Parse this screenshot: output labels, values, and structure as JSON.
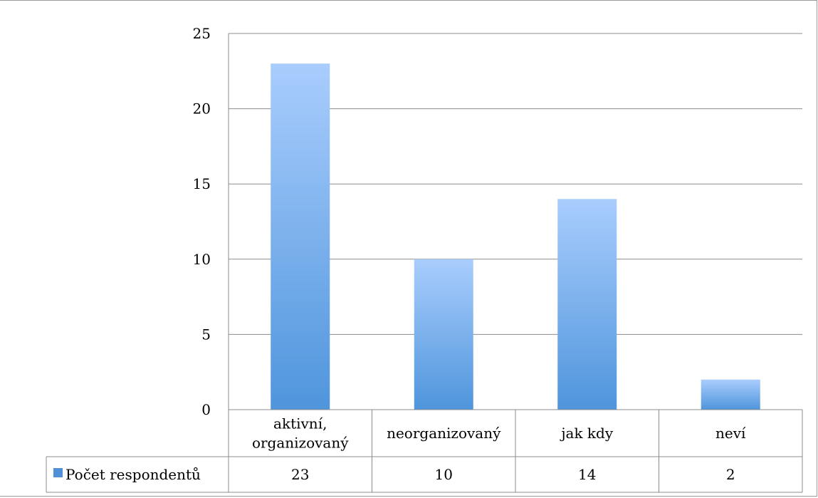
{
  "chart_data": {
    "type": "bar",
    "categories": [
      [
        "aktivní,",
        "organizovaný"
      ],
      [
        "neorganizovaný"
      ],
      [
        "jak kdy"
      ],
      [
        "neví"
      ]
    ],
    "series": [
      {
        "name": "Počet respondentů",
        "values": [
          23,
          10,
          14,
          2
        ]
      }
    ],
    "ylim": [
      0,
      25
    ],
    "yticks": [
      0,
      5,
      10,
      15,
      20,
      25
    ],
    "grid": true,
    "legend": "data-table",
    "data_table": true,
    "colors": {
      "bar_top": "#a9cdfd",
      "bar_bottom": "#4f95dc",
      "legend_key": "#4f90d6",
      "grid": "#8c8c8c"
    }
  }
}
